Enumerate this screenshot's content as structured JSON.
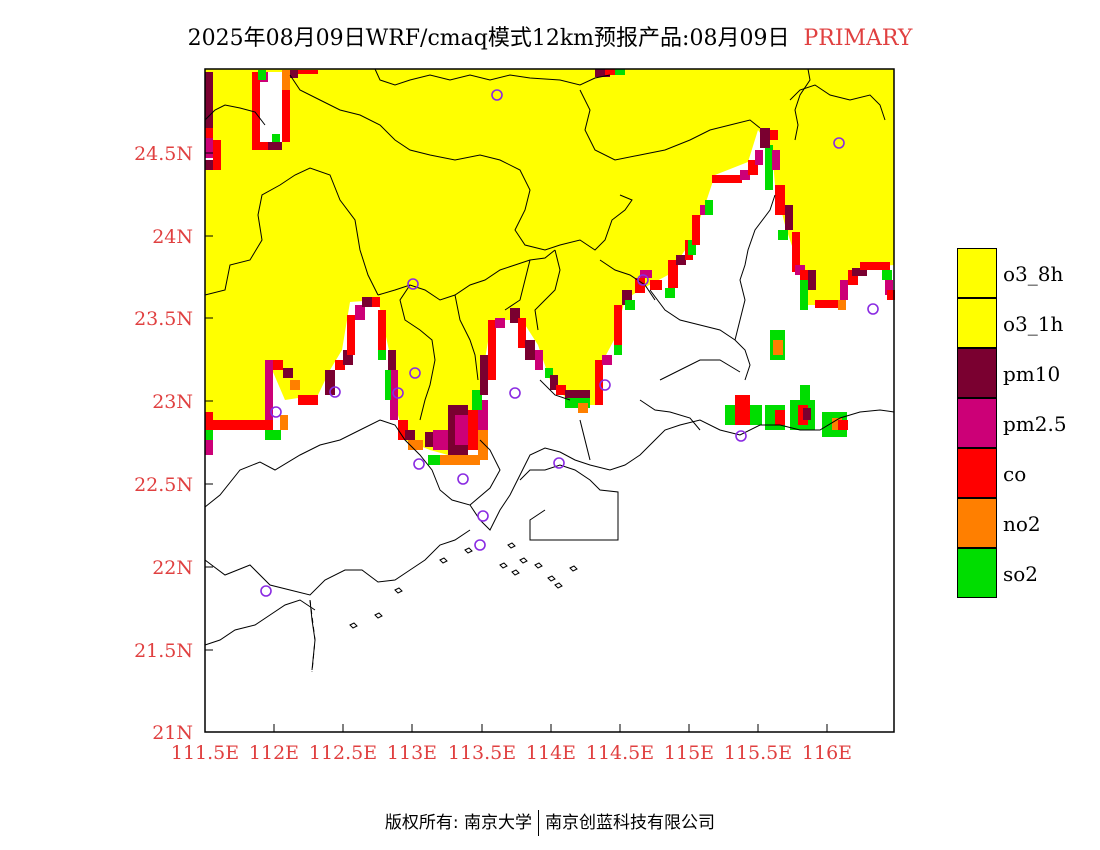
{
  "title": {
    "main": "2025年08月09日WRF/cmaq模式12km预报产品:08月09日",
    "status": "PRIMARY"
  },
  "map": {
    "lat_ticks": [
      "24.5N",
      "24N",
      "23.5N",
      "23N",
      "22.5N",
      "22N",
      "21.5N",
      "21N"
    ],
    "lon_ticks": [
      "111.5E",
      "112E",
      "112.5E",
      "113E",
      "113.5E",
      "114E",
      "114.5E",
      "115E",
      "115.5E",
      "116E"
    ],
    "lon_range": [
      111.5,
      116.5
    ],
    "lat_range": [
      21,
      25
    ],
    "tick_color": "#e04040"
  },
  "legend": [
    {
      "label": "o3_8h",
      "color": "#ffff00"
    },
    {
      "label": "o3_1h",
      "color": "#ffff00"
    },
    {
      "label": "pm10",
      "color": "#7a0030"
    },
    {
      "label": "pm2.5",
      "color": "#cc0077"
    },
    {
      "label": "co",
      "color": "#ff0000"
    },
    {
      "label": "no2",
      "color": "#ff7f00"
    },
    {
      "label": "so2",
      "color": "#00dd00"
    }
  ],
  "footer": {
    "left": "版权所有: 南京大学",
    "right": "南京创蓝科技有限公司"
  }
}
